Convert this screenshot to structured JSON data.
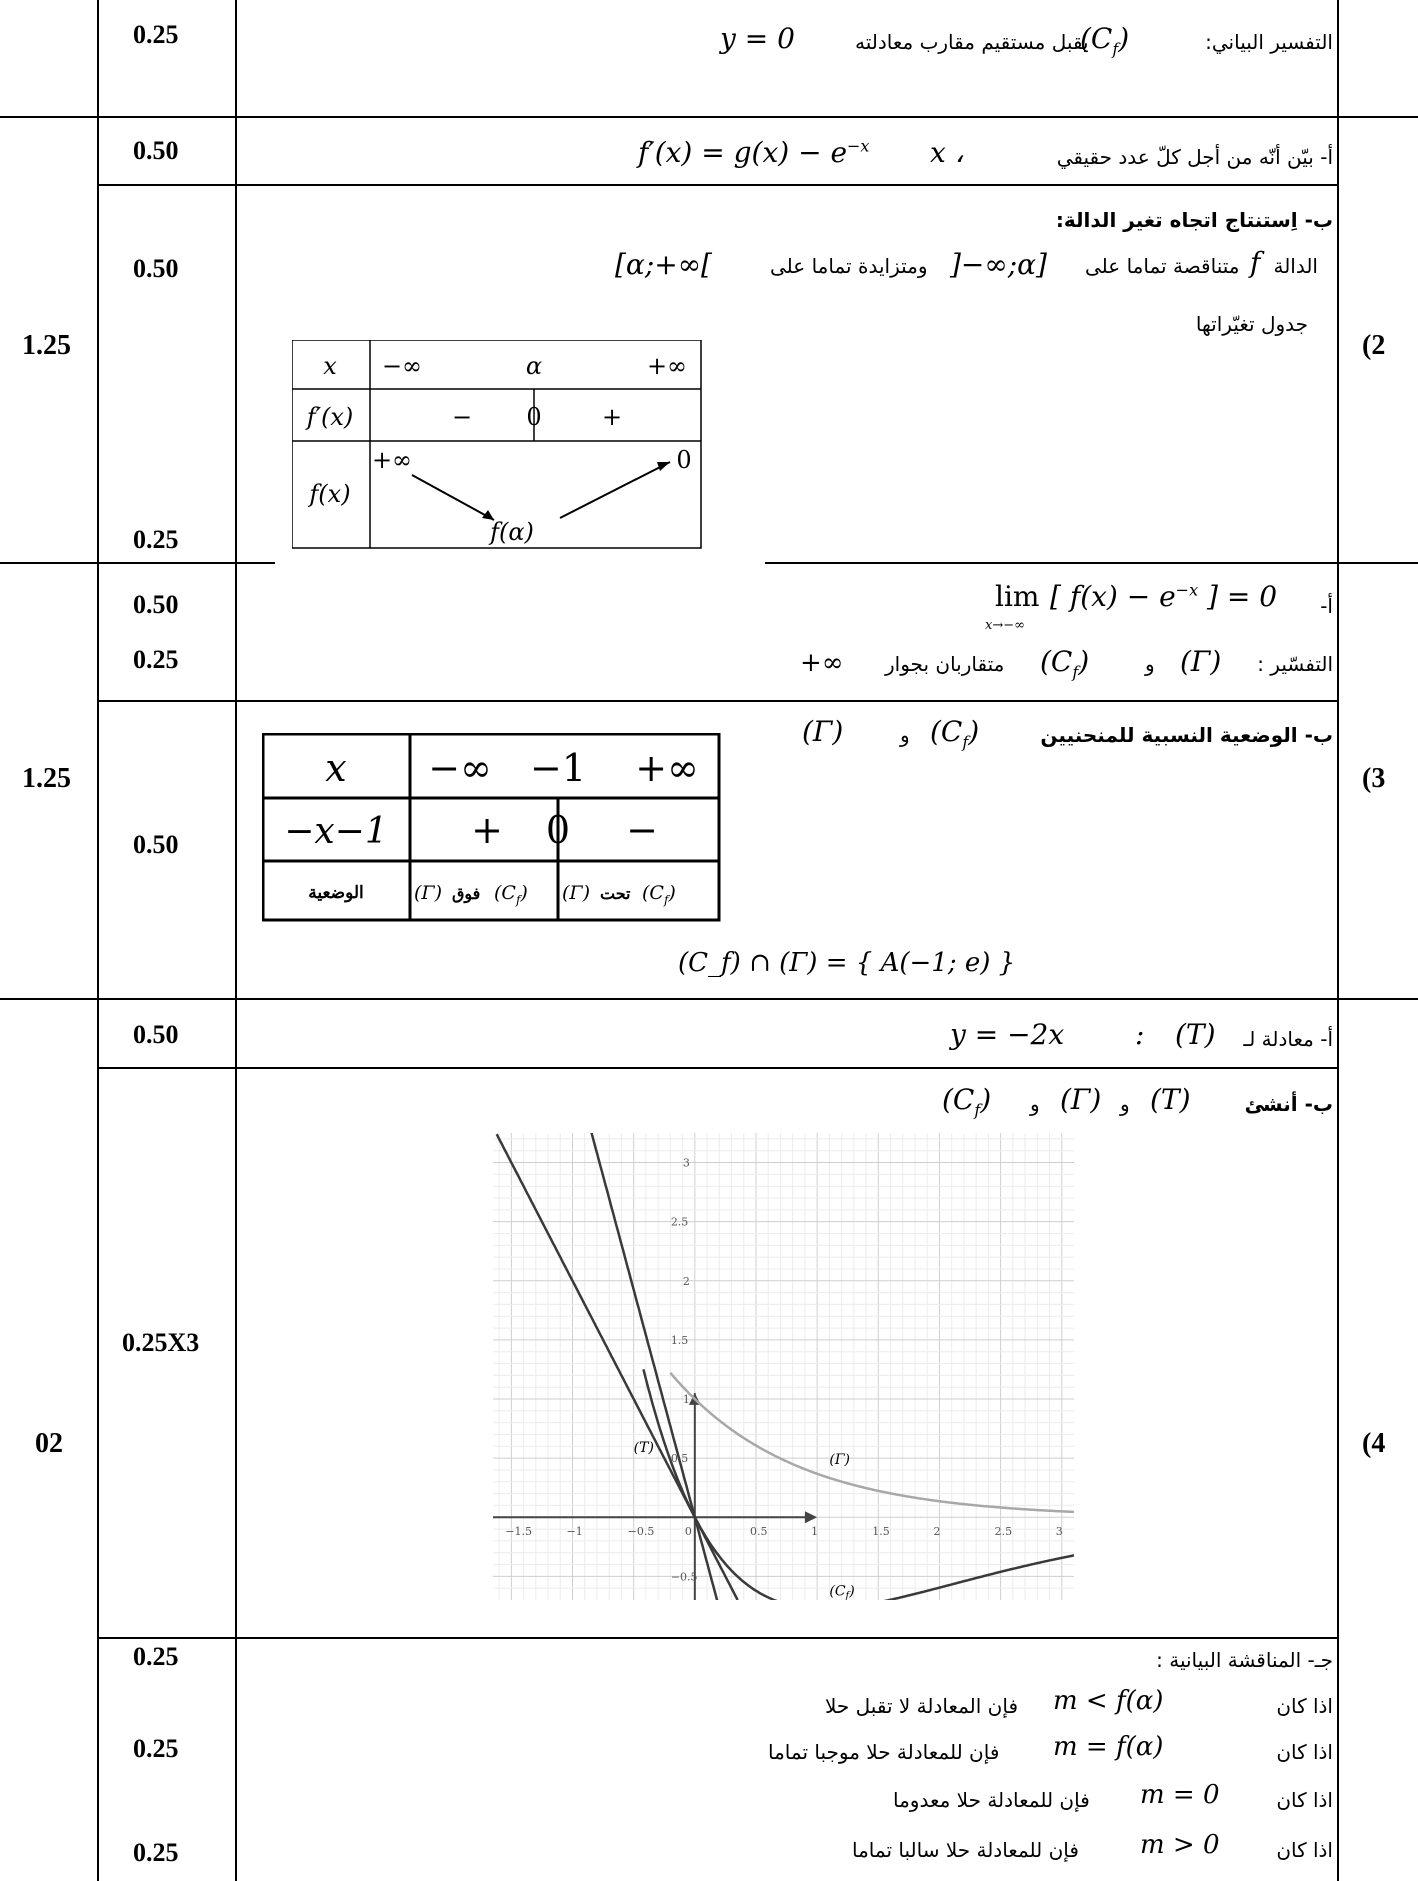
{
  "rows": [
    {
      "score": "0.25",
      "lines": [
        "التفسير البياني: (C_f) يقبل مستقيم مقارب معادلته y = 0"
      ]
    },
    {
      "score": "0.50",
      "lines": [
        "أ- بيّن أنّه من أجل كلّ عدد حقيقي x ، f′(x) = g(x) − e^(−x)"
      ]
    }
  ],
  "q1": {
    "score": "0.25",
    "text": "التفسير البياني:",
    "text2": "يقبل مستقيم مقارب معادلته",
    "math_cf": "(C",
    "math_cf_sub": "f",
    "math_cf_close": ")",
    "math_eq": "y = 0"
  },
  "q2": {
    "number": "(2",
    "total": "1.25",
    "a_score": "0.50",
    "a_text": "أ- بيّن أنّه من أجل كلّ عدد حقيقي",
    "a_math": "f′(x) = g(x) − e",
    "a_exp": "−x",
    "a_x": "x ،",
    "b_score": "0.50",
    "b_head": "ب- اِستنتاج اتجاه تغير الدالة:",
    "b_line1_part1": "الدالة",
    "b_line1_f": "f",
    "b_line1_part2": "متناقصة تماما على",
    "b_interval1": "]−∞;α]",
    "b_line1_part3": "ومتزايدة تماما على",
    "b_interval2": "[α;+∞[",
    "b_table_title": "جدول تغيّراتها",
    "c_score": "0.25",
    "vt": {
      "row_x": [
        "x",
        "−∞",
        "α",
        "+∞"
      ],
      "row_fp": [
        "f′(x)",
        "−",
        "0",
        "+"
      ],
      "row_f": [
        "f(x)",
        "+∞",
        "f(α)",
        "0"
      ]
    }
  },
  "q3": {
    "number": "(3",
    "total": "1.25",
    "a_score1": "0.50",
    "a_score2": "0.25",
    "a_lim": "lim",
    "a_lim_sub": "x→−∞",
    "a_lim_expr": "[ f(x) − e",
    "a_lim_exp": "−x",
    "a_lim_end": "] = 0",
    "a_label": "أ-",
    "a_interp_label": "التفسّير :",
    "a_interp_gamma": "(Γ)",
    "a_interp_and": "و",
    "a_interp_cf": "(C",
    "a_interp_cf_sub": "f",
    "a_interp_end": "متقاربان بجوار",
    "a_interp_inf": "+∞",
    "b_score": "0.50",
    "b_head": "ب- الوضعية النسبية للمنحنيين",
    "b_head_cf": "(C",
    "b_head_cf_sub": "f",
    "b_head_and": "و",
    "b_head_gamma": "(Γ)",
    "pos_table": {
      "row1": [
        "x",
        "−∞",
        "−1",
        "+∞"
      ],
      "row2": [
        "−x−1",
        "+",
        "0",
        "−"
      ],
      "row3_label": "الوضعية",
      "row3_a": "(C_f) فوق (Γ)",
      "row3_b": "(C_f) تحت (Γ)",
      "above": "فوق",
      "below": "تحت"
    },
    "intersection": "(C_f) ∩ (Γ) = { A(−1; e) }"
  },
  "q4": {
    "number": "(4",
    "total": "02",
    "a_score": "0.50",
    "a_text": "أ- معادلة لـ",
    "a_T": "(T)",
    "a_colon": ":",
    "a_eq": "y = −2x",
    "b_score": "0.25X3",
    "b_head": "ب- أنشئ",
    "b_T": "(T)",
    "b_and1": "و",
    "b_gamma": "(Γ)",
    "b_and2": "و",
    "b_cf": "(C",
    "b_cf_sub": "f",
    "c_head": "جـ- المناقشة البيانية :",
    "c_scores": [
      "0.25",
      "0.25",
      "0.25"
    ],
    "c_lines": [
      {
        "cond": "اذا كان",
        "math": "m < f(α)",
        "res": "فإن المعادلة لا تقبل حلا"
      },
      {
        "cond": "اذا كان",
        "math": "m = f(α)",
        "res": "فإن للمعادلة حلا موجبا تماما"
      },
      {
        "cond": "اذا كان",
        "math": "m = 0",
        "res": "فإن للمعادلة حلا معدوما"
      },
      {
        "cond": "اذا كان",
        "math": "m > 0",
        "res": "فإن للمعادلة حلا سالبا تماما"
      }
    ]
  },
  "chart_data": {
    "type": "line",
    "xlim": [
      -1.65,
      3.1
    ],
    "ylim": [
      -0.7,
      3.25
    ],
    "grid": true,
    "x_ticks": [
      "−1.5",
      "−1",
      "−0.5",
      "0",
      "0.5",
      "1",
      "1.5",
      "2",
      "2.5",
      "3"
    ],
    "y_ticks": [
      "3",
      "2.5",
      "2",
      "1.5",
      "1",
      "0.5",
      "−0.5"
    ],
    "series": [
      {
        "name": "(Γ)",
        "formula": "e^(−x)",
        "color": "#a8a8a8"
      },
      {
        "name": "(C_f)",
        "formula": "(x) e^(−x) − ...",
        "color": "#3a3a3a"
      },
      {
        "name": "(T)",
        "formula": "y = −2x",
        "color": "#3a3a3a"
      }
    ],
    "labels": {
      "gamma": "(Γ)",
      "cf": "(C",
      "cf_sub": "f",
      "cf_close": ")",
      "T": "(T)"
    },
    "extra_line": "y = −x (steeper tangent-like line)"
  }
}
